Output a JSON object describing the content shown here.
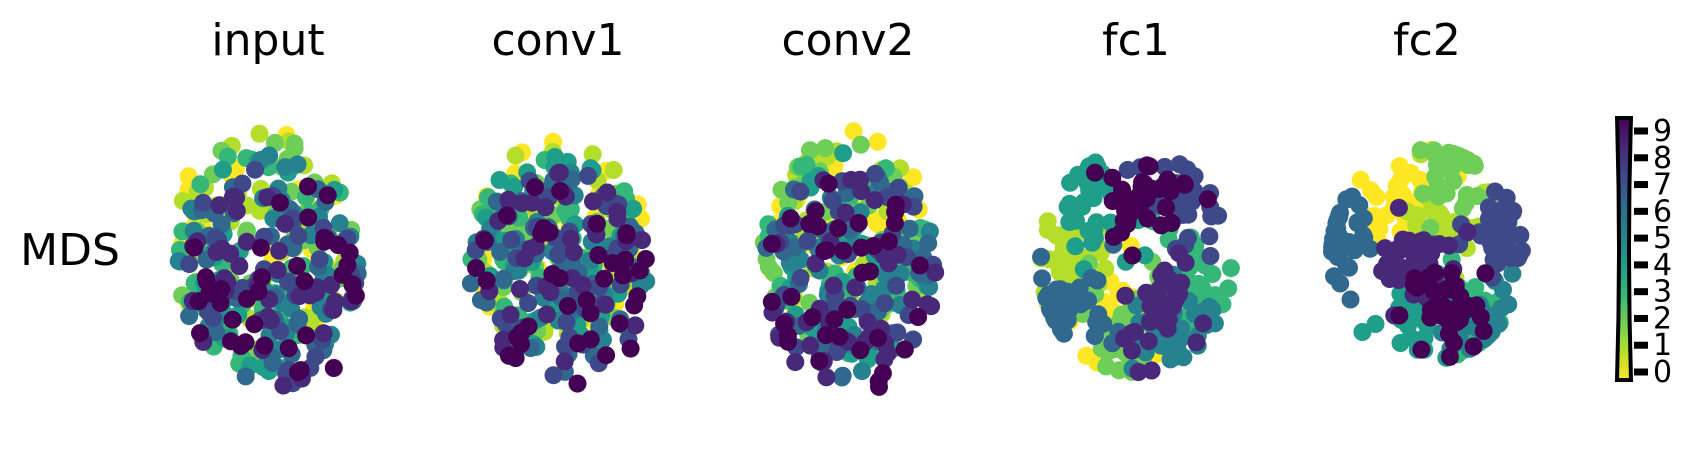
{
  "chart_data": {
    "type": "scatter",
    "row_label": "MDS",
    "panels": [
      {
        "title": "input"
      },
      {
        "title": "conv1"
      },
      {
        "title": "conv2"
      },
      {
        "title": "fc1"
      },
      {
        "title": "fc2"
      }
    ],
    "colorbar": {
      "colormap": "viridis",
      "ticks": [
        "0",
        "1",
        "2",
        "3",
        "4",
        "5",
        "6",
        "7",
        "8",
        "9"
      ],
      "reversed": true
    },
    "class_colors": [
      "#fde725",
      "#b5de2b",
      "#6ece58",
      "#35b779",
      "#1f9e89",
      "#26828e",
      "#31688e",
      "#3e4989",
      "#482878",
      "#440154"
    ],
    "grid": false,
    "axes_visible": false
  }
}
